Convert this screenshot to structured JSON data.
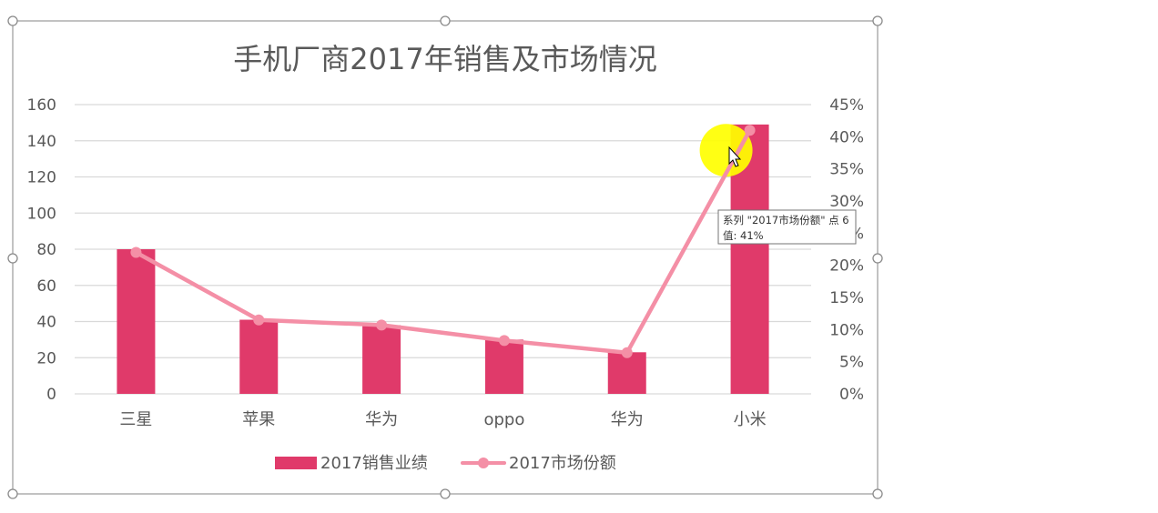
{
  "chart_data": {
    "type": "bar",
    "title": "手机厂商2017年销售及市场情况",
    "categories": [
      "三星",
      "苹果",
      "华为",
      "oppo",
      "华为",
      "小米"
    ],
    "series": [
      {
        "name": "2017销售业绩",
        "type": "bar",
        "axis": "left",
        "color": "#e03a6a",
        "values": [
          80,
          41,
          38,
          30,
          23,
          149
        ]
      },
      {
        "name": "2017市场份额",
        "type": "line",
        "axis": "right",
        "color": "#f48fa6",
        "values": [
          0.22,
          0.115,
          0.107,
          0.083,
          0.064,
          0.41
        ]
      }
    ],
    "y_left": {
      "range": [
        0,
        160
      ],
      "ticks": [
        "0",
        "20",
        "40",
        "60",
        "80",
        "100",
        "120",
        "140",
        "160"
      ]
    },
    "y_right": {
      "range": [
        0,
        0.45
      ],
      "ticks": [
        "0%",
        "5%",
        "10%",
        "15%",
        "20%",
        "25%",
        "30%",
        "35%",
        "40%",
        "45%"
      ]
    },
    "grid": true,
    "legend": "bottom"
  },
  "tooltip": {
    "line1": "系列 \"2017市场份额\" 点 6",
    "line2": "值: 41%"
  },
  "highlight": {
    "color": "#ffff00"
  }
}
